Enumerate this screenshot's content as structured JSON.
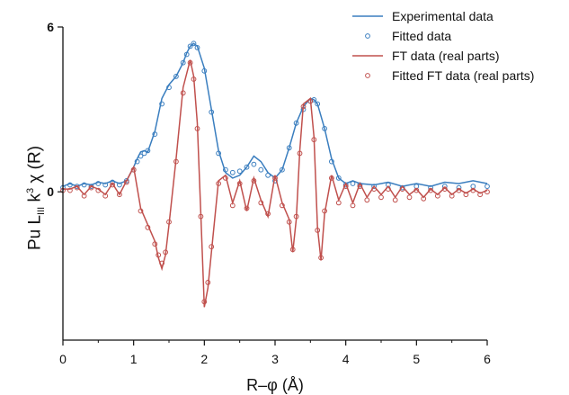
{
  "chart_data": {
    "type": "line",
    "xlabel": "R–φ (Å)",
    "ylabel_parts": {
      "base": "Pu L",
      "sub": "III",
      "mid": " k",
      "sup": "3",
      "end": " χ (R)"
    },
    "xlim": [
      0,
      6
    ],
    "ylim": [
      -5.4,
      6
    ],
    "x_ticks": [
      0,
      1,
      2,
      3,
      4,
      5,
      6
    ],
    "y_ticks": [
      0,
      6
    ],
    "y_tick_labels": [
      "0",
      "6"
    ],
    "legend_position": "top-right",
    "series": [
      {
        "name": "Experimental data",
        "style": "line",
        "color": "#3a7ebf",
        "x": [
          0.0,
          0.1,
          0.2,
          0.3,
          0.4,
          0.5,
          0.6,
          0.7,
          0.8,
          0.9,
          1.0,
          1.05,
          1.1,
          1.15,
          1.2,
          1.3,
          1.4,
          1.5,
          1.6,
          1.7,
          1.75,
          1.8,
          1.85,
          1.9,
          2.0,
          2.1,
          2.2,
          2.3,
          2.4,
          2.5,
          2.6,
          2.7,
          2.8,
          2.9,
          3.0,
          3.1,
          3.2,
          3.3,
          3.4,
          3.5,
          3.55,
          3.6,
          3.7,
          3.8,
          3.9,
          4.0,
          4.1,
          4.2,
          4.4,
          4.6,
          4.8,
          5.0,
          5.2,
          5.4,
          5.6,
          5.8,
          6.0
        ],
        "y": [
          0.2,
          0.3,
          0.2,
          0.3,
          0.25,
          0.35,
          0.3,
          0.4,
          0.3,
          0.4,
          0.9,
          1.2,
          1.45,
          1.5,
          1.45,
          2.2,
          3.4,
          3.9,
          4.2,
          4.7,
          5.05,
          5.3,
          5.4,
          5.3,
          4.5,
          3.0,
          1.5,
          0.7,
          0.5,
          0.6,
          0.9,
          1.3,
          1.1,
          0.7,
          0.5,
          0.8,
          1.6,
          2.5,
          3.1,
          3.4,
          3.35,
          3.2,
          2.3,
          1.2,
          0.5,
          0.3,
          0.4,
          0.3,
          0.25,
          0.35,
          0.2,
          0.3,
          0.2,
          0.35,
          0.3,
          0.4,
          0.3
        ]
      },
      {
        "name": "Fitted data",
        "style": "markers",
        "color": "#3a7ebf",
        "x": [
          0.0,
          0.1,
          0.2,
          0.3,
          0.4,
          0.5,
          0.6,
          0.7,
          0.8,
          0.9,
          1.0,
          1.05,
          1.1,
          1.15,
          1.2,
          1.3,
          1.4,
          1.5,
          1.6,
          1.7,
          1.75,
          1.8,
          1.85,
          1.9,
          2.0,
          2.1,
          2.2,
          2.3,
          2.4,
          2.5,
          2.6,
          2.7,
          2.8,
          2.9,
          3.0,
          3.1,
          3.2,
          3.3,
          3.4,
          3.5,
          3.55,
          3.6,
          3.7,
          3.8,
          3.9,
          4.0,
          4.1,
          4.2,
          4.4,
          4.6,
          4.8,
          5.0,
          5.2,
          5.4,
          5.6,
          5.8,
          6.0
        ],
        "y": [
          0.15,
          0.25,
          0.2,
          0.25,
          0.2,
          0.3,
          0.25,
          0.35,
          0.25,
          0.4,
          0.8,
          1.1,
          1.3,
          1.4,
          1.5,
          2.1,
          3.2,
          3.8,
          4.2,
          4.7,
          5.0,
          5.3,
          5.4,
          5.25,
          4.4,
          2.9,
          1.4,
          0.8,
          0.7,
          0.75,
          0.9,
          1.0,
          0.8,
          0.6,
          0.4,
          0.8,
          1.6,
          2.5,
          3.0,
          3.3,
          3.35,
          3.2,
          2.3,
          1.1,
          0.5,
          0.25,
          0.3,
          0.25,
          0.2,
          0.25,
          0.15,
          0.2,
          0.15,
          0.2,
          0.15,
          0.2,
          0.2
        ]
      },
      {
        "name": "FT data (real parts)",
        "style": "line",
        "color": "#c0504d",
        "x": [
          0.0,
          0.1,
          0.2,
          0.3,
          0.4,
          0.5,
          0.6,
          0.7,
          0.8,
          0.9,
          1.0,
          1.1,
          1.2,
          1.3,
          1.35,
          1.4,
          1.45,
          1.5,
          1.6,
          1.7,
          1.8,
          1.85,
          1.9,
          1.95,
          2.0,
          2.05,
          2.1,
          2.2,
          2.3,
          2.4,
          2.5,
          2.6,
          2.7,
          2.8,
          2.9,
          3.0,
          3.1,
          3.2,
          3.25,
          3.3,
          3.35,
          3.4,
          3.5,
          3.55,
          3.6,
          3.65,
          3.7,
          3.8,
          3.9,
          4.0,
          4.1,
          4.2,
          4.3,
          4.4,
          4.5,
          4.6,
          4.7,
          4.8,
          4.9,
          5.0,
          5.1,
          5.2,
          5.3,
          5.4,
          5.5,
          5.6,
          5.7,
          5.8,
          5.9,
          6.0
        ],
        "y": [
          0.1,
          0.1,
          0.2,
          -0.1,
          0.2,
          0.1,
          -0.1,
          0.3,
          -0.1,
          0.4,
          0.9,
          -0.6,
          -1.2,
          -1.8,
          -2.4,
          -2.8,
          -2.3,
          -1.2,
          1.2,
          3.8,
          4.8,
          4.2,
          2.5,
          -0.8,
          -4.2,
          -3.5,
          -2.2,
          0.4,
          0.6,
          -0.4,
          0.4,
          -0.7,
          0.5,
          -0.3,
          -0.9,
          0.6,
          -0.4,
          -1.0,
          -2.2,
          -1.0,
          1.5,
          3.2,
          3.4,
          2.0,
          -1.3,
          -2.5,
          -0.8,
          0.6,
          -0.3,
          0.3,
          -0.4,
          0.3,
          -0.2,
          0.2,
          -0.1,
          0.2,
          -0.2,
          0.2,
          -0.1,
          0.1,
          -0.2,
          0.1,
          -0.1,
          0.15,
          -0.1,
          0.1,
          -0.05,
          0.1,
          -0.05,
          0.05
        ]
      },
      {
        "name": "Fitted FT data (real parts)",
        "style": "markers",
        "color": "#c0504d",
        "x": [
          0.0,
          0.1,
          0.2,
          0.3,
          0.4,
          0.5,
          0.6,
          0.7,
          0.8,
          0.9,
          1.0,
          1.1,
          1.2,
          1.3,
          1.35,
          1.4,
          1.45,
          1.5,
          1.6,
          1.7,
          1.8,
          1.85,
          1.9,
          1.95,
          2.0,
          2.05,
          2.1,
          2.2,
          2.3,
          2.4,
          2.5,
          2.6,
          2.7,
          2.8,
          2.9,
          3.0,
          3.1,
          3.2,
          3.25,
          3.3,
          3.35,
          3.4,
          3.5,
          3.55,
          3.6,
          3.65,
          3.7,
          3.8,
          3.9,
          4.0,
          4.1,
          4.2,
          4.3,
          4.4,
          4.5,
          4.6,
          4.7,
          4.8,
          4.9,
          5.0,
          5.1,
          5.2,
          5.3,
          5.4,
          5.5,
          5.6,
          5.7,
          5.8,
          5.9,
          6.0
        ],
        "y": [
          0.05,
          0.05,
          0.15,
          -0.15,
          0.15,
          0.05,
          -0.15,
          0.25,
          -0.1,
          0.35,
          0.8,
          -0.7,
          -1.3,
          -1.9,
          -2.3,
          -2.6,
          -2.2,
          -1.1,
          1.1,
          3.6,
          4.7,
          4.1,
          2.3,
          -0.9,
          -4.0,
          -3.3,
          -2.0,
          0.3,
          0.5,
          -0.5,
          0.3,
          -0.6,
          0.4,
          -0.4,
          -0.8,
          0.5,
          -0.5,
          -1.1,
          -2.1,
          -0.9,
          1.4,
          3.1,
          3.3,
          1.9,
          -1.4,
          -2.4,
          -0.7,
          0.5,
          -0.4,
          0.2,
          -0.5,
          0.2,
          -0.3,
          0.1,
          -0.2,
          0.1,
          -0.3,
          0.1,
          -0.2,
          0.05,
          -0.25,
          0.05,
          -0.15,
          0.1,
          -0.15,
          0.05,
          -0.1,
          0.05,
          -0.1,
          0.0
        ]
      }
    ]
  }
}
